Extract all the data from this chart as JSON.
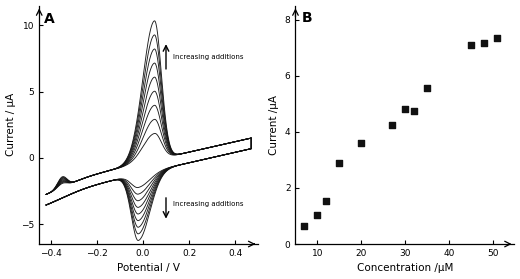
{
  "panel_A_label": "A",
  "panel_B_label": "B",
  "cv_xlim": [
    -0.45,
    0.5
  ],
  "cv_ylim": [
    -6.5,
    11.5
  ],
  "cv_xticks": [
    -0.4,
    -0.2,
    0.0,
    0.2,
    0.4
  ],
  "cv_yticks": [
    -5,
    0,
    5,
    10
  ],
  "cv_xlabel": "Potential / V",
  "cv_ylabel": "Current / μA",
  "cv_n_curves": 9,
  "scatter_x": [
    7,
    10,
    12,
    15,
    20,
    27,
    30,
    32,
    35,
    45,
    48,
    51
  ],
  "scatter_y": [
    0.65,
    1.05,
    1.55,
    2.9,
    3.6,
    4.25,
    4.8,
    4.75,
    5.55,
    7.1,
    7.15,
    7.35
  ],
  "scatter_xlim": [
    5,
    55
  ],
  "scatter_ylim": [
    0,
    8.5
  ],
  "scatter_xticks": [
    10,
    20,
    30,
    40,
    50
  ],
  "scatter_yticks": [
    0,
    2,
    4,
    6,
    8
  ],
  "scatter_xlabel": "Concentration /μM",
  "scatter_ylabel": "Current /μA",
  "background_color": "#ffffff",
  "line_color": "#111111",
  "marker_color": "#111111"
}
